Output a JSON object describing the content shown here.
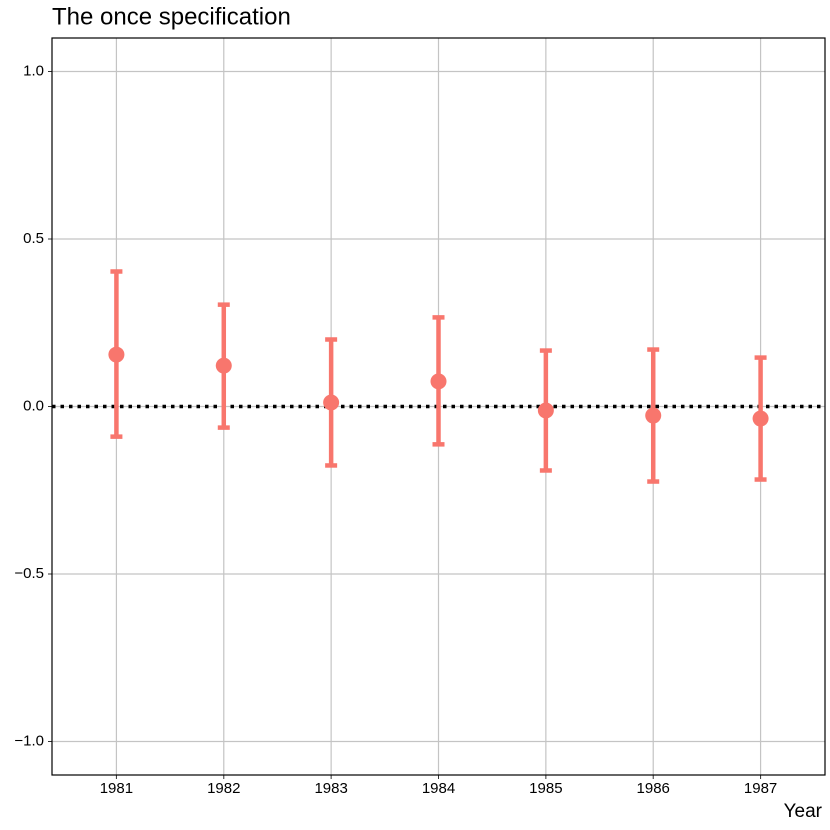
{
  "chart_data": {
    "type": "errorbar",
    "title": "The once specification",
    "x_label": "Year",
    "categories": [
      "1981",
      "1982",
      "1983",
      "1984",
      "1985",
      "1986",
      "1987"
    ],
    "values": [
      0.155,
      0.122,
      0.012,
      0.075,
      -0.012,
      -0.027,
      -0.036
    ],
    "lower": [
      -0.09,
      -0.063,
      -0.176,
      -0.113,
      -0.191,
      -0.224,
      -0.218
    ],
    "upper": [
      0.403,
      0.304,
      0.2,
      0.266,
      0.167,
      0.17,
      0.146
    ],
    "color": "#F8766D",
    "reference_line": 0,
    "ylim": [
      -1.1,
      1.1
    ],
    "yticks": [
      {
        "value": -1,
        "label": "−1.0"
      },
      {
        "value": -0.5,
        "label": "−0.5"
      },
      {
        "value": 0,
        "label": "0.0"
      },
      {
        "value": 0.5,
        "label": "0.5"
      },
      {
        "value": 1,
        "label": "1.0"
      }
    ],
    "grid": true
  }
}
